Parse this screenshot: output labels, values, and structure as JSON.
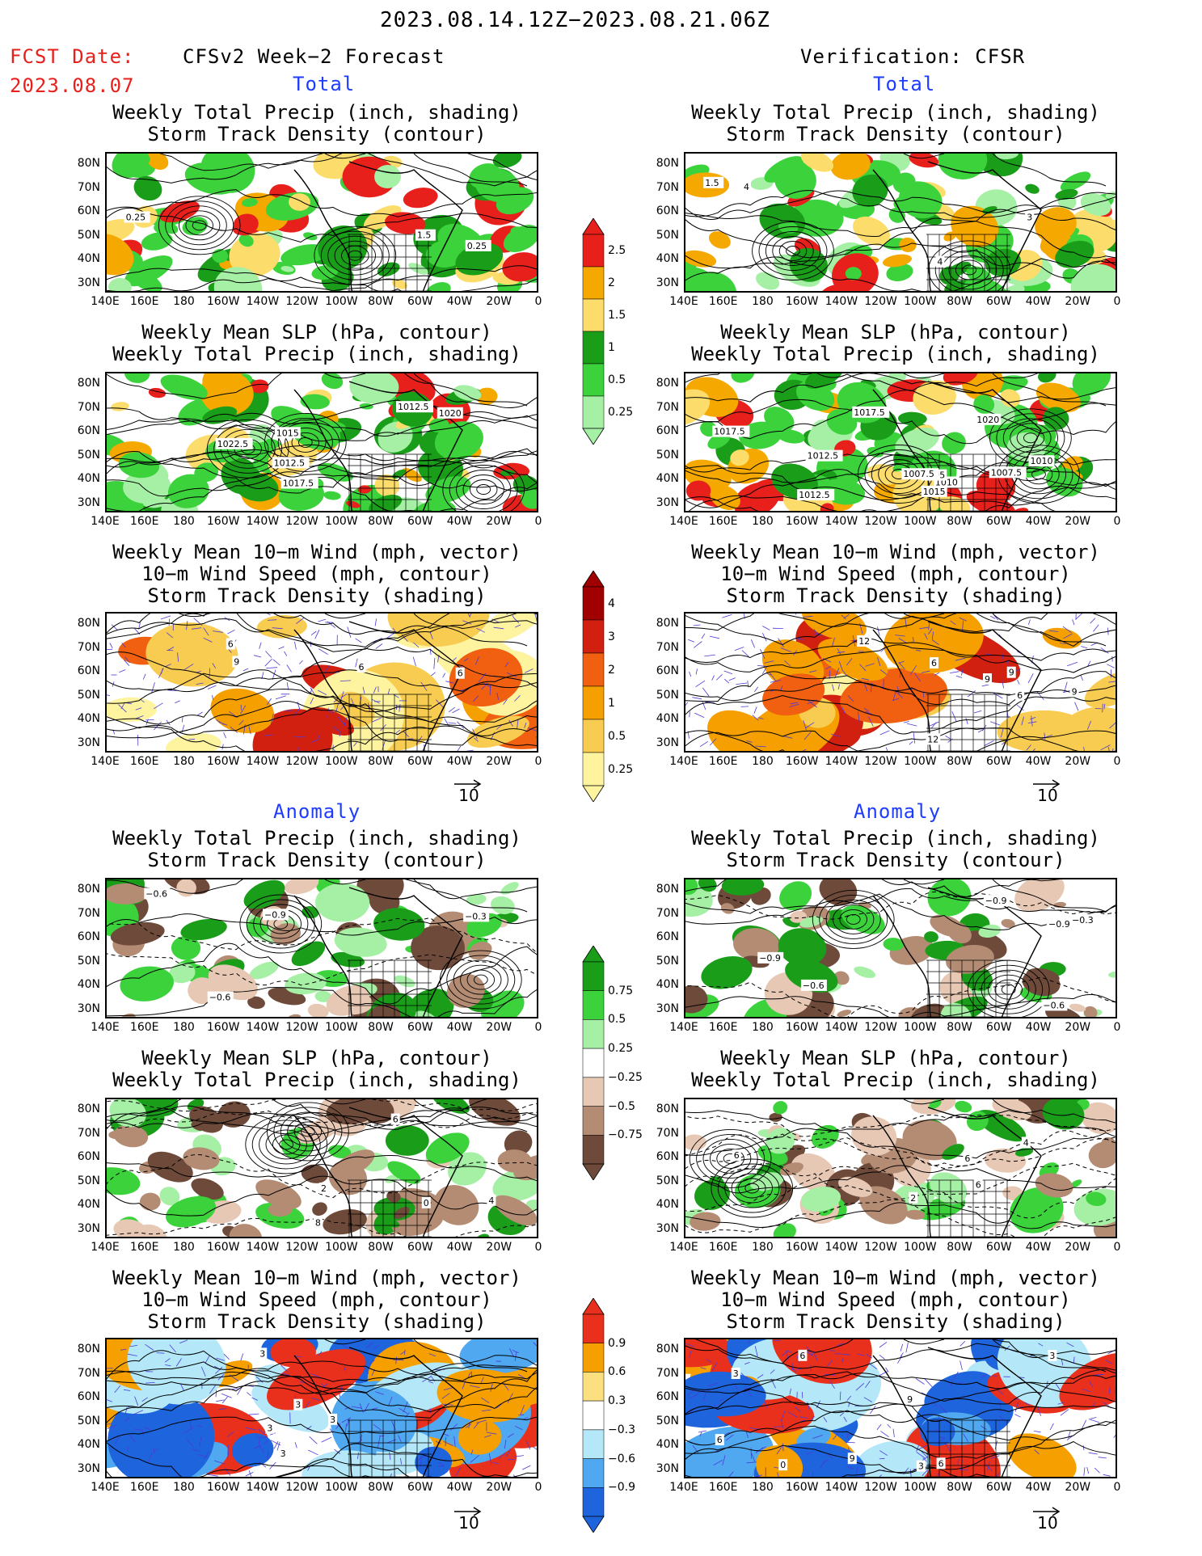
{
  "header": {
    "period": "2023.08.14.12Z−2023.08.21.06Z",
    "fcst_label": "FCST Date:",
    "fcst_date": "2023.08.07",
    "left_title": "CFSv2 Week−2 Forecast",
    "right_title": "Verification: CFSR"
  },
  "sections": {
    "total": "Total",
    "anomaly": "Anomaly"
  },
  "panel_titles": {
    "precip_storm": [
      "Weekly Total Precip (inch, shading)",
      "Storm Track Density (contour)"
    ],
    "slp_precip": [
      "Weekly Mean SLP (hPa, contour)",
      "Weekly Total Precip (inch, shading)"
    ],
    "wind_storm": [
      "Weekly Mean 10−m Wind (mph, vector)",
      "10−m Wind Speed (mph, contour)",
      "Storm Track Density (shading)"
    ]
  },
  "axes": {
    "lat_labels": [
      "80N",
      "70N",
      "60N",
      "50N",
      "40N",
      "30N"
    ],
    "lon_labels": [
      "140E",
      "160E",
      "180",
      "160W",
      "140W",
      "120W",
      "100W",
      "80W",
      "60W",
      "40W",
      "20W",
      "0"
    ]
  },
  "vector_ref": "10",
  "colorbars": {
    "precip_total": {
      "labels": [
        "2.5",
        "2",
        "1.5",
        "1",
        "0.5",
        "0.25"
      ],
      "colors": [
        "#e8201c",
        "#f5a800",
        "#fcdc6a",
        "#1a9e1a",
        "#3cd23c",
        "#a6f0a6"
      ]
    },
    "storm_total": {
      "labels": [
        "4",
        "3",
        "2",
        "1",
        "0.5",
        "0.25"
      ],
      "colors": [
        "#a00000",
        "#d22010",
        "#f06010",
        "#f5a000",
        "#f8cc50",
        "#fef4a0"
      ]
    },
    "precip_anom": {
      "labels": [
        "0.75",
        "0.5",
        "0.25",
        "−0.25",
        "−0.5",
        "−0.75"
      ],
      "colors": [
        "#1a9e1a",
        "#3cd23c",
        "#a6f0a6",
        "#ffffff",
        "#e6c8b4",
        "#b48c74",
        "#6e4a3a"
      ]
    },
    "storm_anom": {
      "labels": [
        "0.9",
        "0.6",
        "0.3",
        "−0.3",
        "−0.6",
        "−0.9"
      ],
      "colors": [
        "#e8301c",
        "#f5a000",
        "#fce080",
        "#ffffff",
        "#b4e8f8",
        "#50a8f0",
        "#1e64dc"
      ]
    }
  },
  "contour_labels": {
    "f_precip_total": [
      "0.25",
      "0.25",
      "1.5"
    ],
    "f_slp_total": [
      "1012.5",
      "1017.5",
      "1012.5",
      "1015",
      "1022.5",
      "1020"
    ],
    "f_wind_total": [
      "6",
      "6",
      "9",
      "6"
    ],
    "v_precip_total": [
      "3",
      "4",
      "4",
      "1.5"
    ],
    "v_slp_total": [
      "1010",
      "1007.5",
      "1010",
      "1015",
      "1020",
      "1012.5",
      "1017.5",
      "1005",
      "1007.5",
      "1012.5",
      "1017.5"
    ],
    "v_wind_total": [
      "12",
      "6",
      "9",
      "6",
      "9",
      "9",
      "12"
    ],
    "f_precip_anom": [
      "−0.3",
      "−0.6",
      "−0.9",
      "−0.6"
    ],
    "f_slp_anom": [
      "4",
      "6",
      "8",
      "2",
      "0"
    ],
    "f_wind_anom": [
      "3",
      "3",
      "3",
      "3",
      "3"
    ],
    "v_precip_anom": [
      "−0.9",
      "−0.9",
      "−0.6",
      "−0.9",
      "−0.3",
      "−0.6"
    ],
    "v_slp_anom": [
      "4",
      "6",
      "6",
      "6",
      "2"
    ],
    "v_wind_anom": [
      "6",
      "3",
      "9",
      "3",
      "9",
      "0",
      "3",
      "6",
      "6"
    ]
  }
}
